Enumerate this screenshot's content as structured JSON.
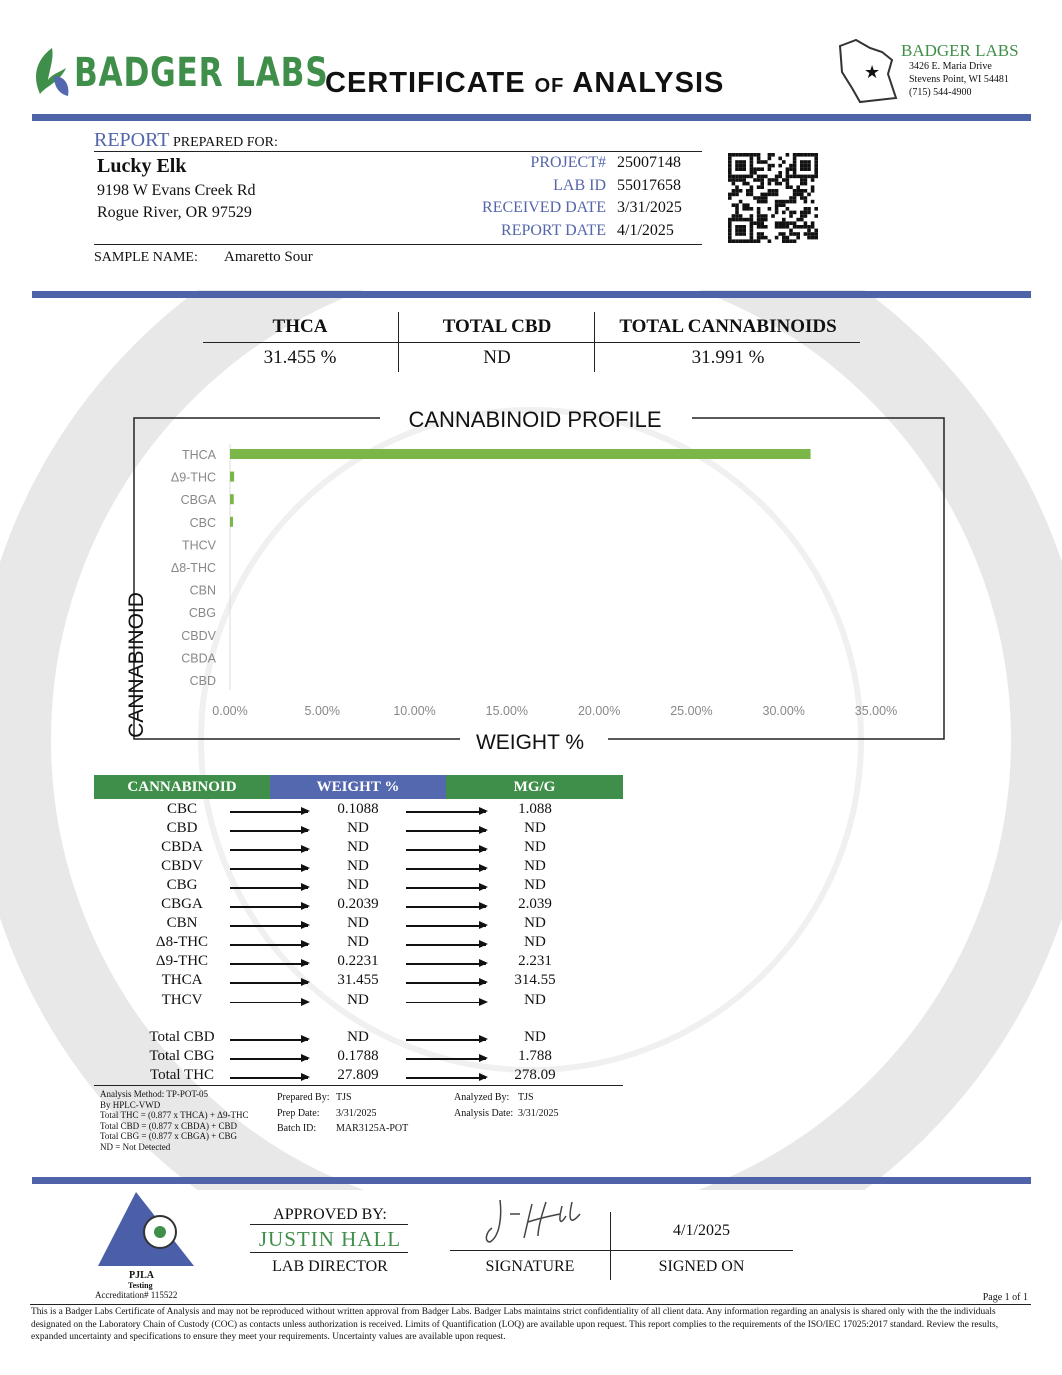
{
  "header": {
    "logo_text": "BADGER LABS",
    "title_main1": "CERTIFICATE",
    "title_of": "OF",
    "title_main2": "ANALYSIS",
    "lab_name": "BADGER LABS",
    "lab_address1": "3426 E. Maria Drive",
    "lab_address2": "Stevens Point, WI 54481",
    "lab_phone": "(715) 544-4900",
    "icon": "wisconsin-star-icon"
  },
  "report": {
    "report_word": "REPORT",
    "prepared_for": "PREPARED FOR:",
    "client_name": "Lucky Elk",
    "client_address1": "9198 W Evans Creek Rd",
    "client_address2": "Rogue River, OR 97529",
    "fields": [
      {
        "label": "PROJECT#",
        "value": "25007148"
      },
      {
        "label": "LAB ID",
        "value": "55017658"
      },
      {
        "label": "RECEIVED DATE",
        "value": "3/31/2025"
      },
      {
        "label": "REPORT DATE",
        "value": "4/1/2025"
      }
    ],
    "sample_label": "SAMPLE NAME:",
    "sample_name": "Amaretto Sour"
  },
  "summary": [
    {
      "label": "THCA",
      "value": "31.455 %"
    },
    {
      "label": "TOTAL CBD",
      "value": "ND"
    },
    {
      "label": "TOTAL CANNABINOIDS",
      "value": "31.991 %"
    }
  ],
  "chart_data": {
    "type": "bar",
    "orientation": "horizontal",
    "title": "CANNABINOID PROFILE",
    "xlabel": "WEIGHT %",
    "ylabel": "CANNABINOID",
    "categories": [
      "THCA",
      "Δ9-THC",
      "CBGA",
      "CBC",
      "THCV",
      "Δ8-THC",
      "CBN",
      "CBG",
      "CBDV",
      "CBDA",
      "CBD"
    ],
    "values": [
      31.455,
      0.2231,
      0.2039,
      0.1088,
      0,
      0,
      0,
      0,
      0,
      0,
      0
    ],
    "xlim": [
      0,
      35
    ],
    "xticks": [
      "0.00%",
      "5.00%",
      "10.00%",
      "15.00%",
      "20.00%",
      "25.00%",
      "30.00%",
      "35.00%"
    ],
    "color": "#7ab648",
    "grid": false
  },
  "table": {
    "headers": [
      "CANNABINOID",
      "WEIGHT %",
      "MG/G"
    ],
    "header_colors": [
      "#3f8f4a",
      "#5468b0",
      "#3f8f4a"
    ],
    "rows": [
      [
        "CBC",
        "0.1088",
        "1.088"
      ],
      [
        "CBD",
        "ND",
        "ND"
      ],
      [
        "CBDA",
        "ND",
        "ND"
      ],
      [
        "CBDV",
        "ND",
        "ND"
      ],
      [
        "CBG",
        "ND",
        "ND"
      ],
      [
        "CBGA",
        "0.2039",
        "2.039"
      ],
      [
        "CBN",
        "ND",
        "ND"
      ],
      [
        "Δ8-THC",
        "ND",
        "ND"
      ],
      [
        "Δ9-THC",
        "0.2231",
        "2.231"
      ],
      [
        "THCA",
        "31.455",
        "314.55"
      ],
      [
        "THCV",
        "ND",
        "ND"
      ]
    ],
    "totals": [
      [
        "Total CBD",
        "ND",
        "ND"
      ],
      [
        "Total CBG",
        "0.1788",
        "1.788"
      ],
      [
        "Total THC",
        "27.809",
        "278.09"
      ]
    ]
  },
  "notes": {
    "method": [
      "Analysis Method: TP-POT-05",
      "By HPLC-VWD",
      "Total THC = (0.877 x  THCA) + Δ9-THC",
      "Total CBD = (0.877 x  CBDA) + CBD",
      "Total CBG = (0.877 x  CBGA) + CBG",
      "ND = Not Detected"
    ],
    "prepared_by_label": "Prepared By:",
    "prepared_by": "TJS",
    "prep_date_label": "Prep Date:",
    "prep_date": "3/31/2025",
    "batch_label": "Batch ID:",
    "batch": "MAR3125A-POT",
    "analyzed_by_label": "Analyzed By:",
    "analyzed_by": "TJS",
    "analysis_date_label": "Analysis Date:",
    "analysis_date": "3/31/2025"
  },
  "footer": {
    "pjla": "PJLA",
    "testing": "Testing",
    "accreditation": "Accreditation# 115522",
    "approved_by": "APPROVED BY:",
    "approver": "JUSTIN HALL",
    "approver_title": "LAB DIRECTOR",
    "signature_label": "SIGNATURE",
    "signed_date": "4/1/2025",
    "signed_on_label": "SIGNED ON",
    "page": "Page 1 of 1",
    "disclaimer": "This is a Badger Labs Certificate of Analysis and may not be reproduced without written approval from Badger Labs. Badger Labs maintains strict confidentiality of all client data. Any information regarding an analysis is shared only with the the individuals designated on the Laboratory Chain of Custody (COC) as contacts unless authorization is received. Limits of Quantification (LOQ) are available upon request. This report complies to the requirements of the ISO/IEC 17025:2017 standard. Review the results, expanded uncertainty and specifications to ensure they meet your requirements. Uncertainty values are available upon request."
  }
}
